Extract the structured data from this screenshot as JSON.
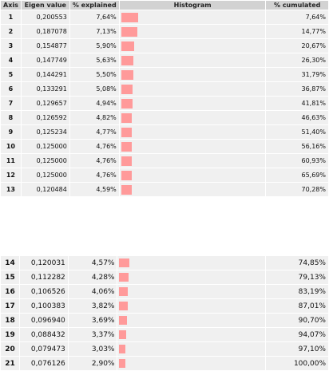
{
  "table": {
    "headers": {
      "axis": "Axis",
      "eigen": "Eigen value",
      "explained": "% explained",
      "histogram": "Histogram",
      "cumulated": "% cumulated"
    },
    "bar_color": "#ff9a9a",
    "max_explained": 7.64,
    "rows": [
      {
        "axis": "1",
        "eigen": "0,200553",
        "explained": "7,64%",
        "pct": 7.64,
        "cumulated": "7,64%"
      },
      {
        "axis": "2",
        "eigen": "0,187078",
        "explained": "7,13%",
        "pct": 7.13,
        "cumulated": "14,77%"
      },
      {
        "axis": "3",
        "eigen": "0,154877",
        "explained": "5,90%",
        "pct": 5.9,
        "cumulated": "20,67%"
      },
      {
        "axis": "4",
        "eigen": "0,147749",
        "explained": "5,63%",
        "pct": 5.63,
        "cumulated": "26,30%"
      },
      {
        "axis": "5",
        "eigen": "0,144291",
        "explained": "5,50%",
        "pct": 5.5,
        "cumulated": "31,79%"
      },
      {
        "axis": "6",
        "eigen": "0,133291",
        "explained": "5,08%",
        "pct": 5.08,
        "cumulated": "36,87%"
      },
      {
        "axis": "7",
        "eigen": "0,129657",
        "explained": "4,94%",
        "pct": 4.94,
        "cumulated": "41,81%"
      },
      {
        "axis": "8",
        "eigen": "0,126592",
        "explained": "4,82%",
        "pct": 4.82,
        "cumulated": "46,63%"
      },
      {
        "axis": "9",
        "eigen": "0,125234",
        "explained": "4,77%",
        "pct": 4.77,
        "cumulated": "51,40%"
      },
      {
        "axis": "10",
        "eigen": "0,125000",
        "explained": "4,76%",
        "pct": 4.76,
        "cumulated": "56,16%"
      },
      {
        "axis": "11",
        "eigen": "0,125000",
        "explained": "4,76%",
        "pct": 4.76,
        "cumulated": "60,93%"
      },
      {
        "axis": "12",
        "eigen": "0,125000",
        "explained": "4,76%",
        "pct": 4.76,
        "cumulated": "65,69%"
      },
      {
        "axis": "13",
        "eigen": "0,120484",
        "explained": "4,59%",
        "pct": 4.59,
        "cumulated": "70,28%"
      },
      {
        "axis": "14",
        "eigen": "0,120031",
        "explained": "4,57%",
        "pct": 4.57,
        "cumulated": "74,85%"
      },
      {
        "axis": "15",
        "eigen": "0,112282",
        "explained": "4,28%",
        "pct": 4.28,
        "cumulated": "79,13%"
      },
      {
        "axis": "16",
        "eigen": "0,106526",
        "explained": "4,06%",
        "pct": 4.06,
        "cumulated": "83,19%"
      },
      {
        "axis": "17",
        "eigen": "0,100383",
        "explained": "3,82%",
        "pct": 3.82,
        "cumulated": "87,01%"
      },
      {
        "axis": "18",
        "eigen": "0,096940",
        "explained": "3,69%",
        "pct": 3.69,
        "cumulated": "90,70%"
      },
      {
        "axis": "19",
        "eigen": "0,088432",
        "explained": "3,37%",
        "pct": 3.37,
        "cumulated": "94,07%"
      },
      {
        "axis": "20",
        "eigen": "0,079473",
        "explained": "3,03%",
        "pct": 3.03,
        "cumulated": "97,10%"
      },
      {
        "axis": "21",
        "eigen": "0,076126",
        "explained": "2,90%",
        "pct": 2.9,
        "cumulated": "100,00%"
      }
    ]
  }
}
